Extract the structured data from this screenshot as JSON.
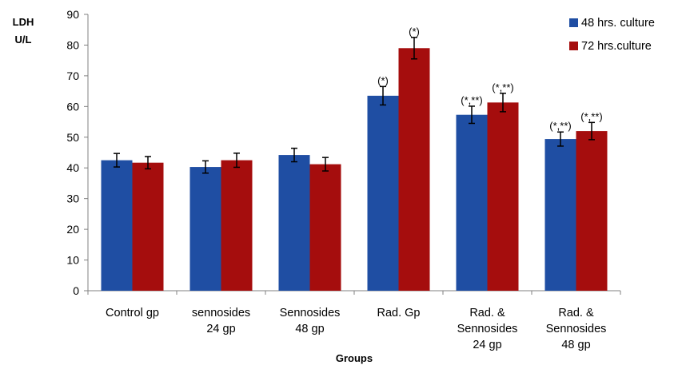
{
  "chart_data": {
    "type": "bar",
    "ylabel_lines": [
      "LDH",
      "U/L"
    ],
    "xlabel": "Groups",
    "ylim": [
      0,
      90
    ],
    "yticks": [
      0,
      10,
      20,
      30,
      40,
      50,
      60,
      70,
      80,
      90
    ],
    "grid": false,
    "legend_position": "top-right",
    "categories": [
      [
        "Control gp"
      ],
      [
        "sennosides",
        "24 gp"
      ],
      [
        "Sennosides",
        "48 gp"
      ],
      [
        "Rad. Gp"
      ],
      [
        "Rad. &",
        "Sennosides",
        "24 gp"
      ],
      [
        "Rad. &",
        "Sennosides",
        "48 gp"
      ]
    ],
    "series": [
      {
        "name": "48 hrs. culture",
        "color": "#1f4ea3",
        "values": [
          42.5,
          40.3,
          44.2,
          63.5,
          57.3,
          49.4
        ],
        "errors": [
          2.2,
          2.0,
          2.2,
          3.0,
          2.8,
          2.3
        ],
        "annotations": [
          "",
          "",
          "",
          "(*)",
          "(*,**)",
          "(*,**)"
        ]
      },
      {
        "name": "72 hrs.culture",
        "color": "#a50d0d",
        "values": [
          41.7,
          42.5,
          41.2,
          79.0,
          61.3,
          52.0
        ],
        "errors": [
          2.0,
          2.3,
          2.2,
          3.5,
          3.0,
          2.8
        ],
        "annotations": [
          "",
          "",
          "",
          "(*)",
          "(*,**)",
          "(*,**)"
        ]
      }
    ]
  }
}
